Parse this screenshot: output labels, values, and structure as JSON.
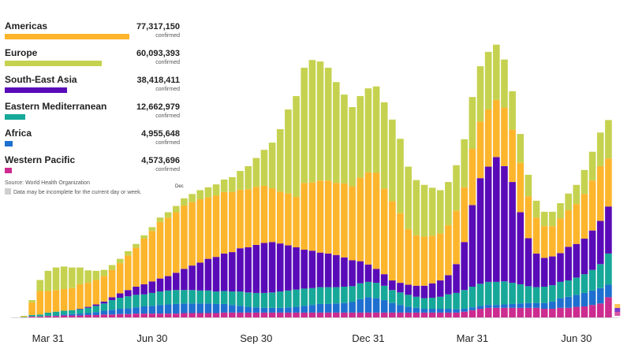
{
  "chart_data": {
    "type": "bar",
    "stacked": true,
    "title": "",
    "xlabel": "",
    "ylabel": "",
    "x_ticks": [
      "Mar 31",
      "Jun 30",
      "Sep 30",
      "Dec 31",
      "Mar 31",
      "Jun 30"
    ],
    "tick_positions": [
      4,
      17,
      30,
      44,
      57,
      70
    ],
    "ylim": [
      0,
      62
    ],
    "grid": false,
    "legend_position": "top-left",
    "series": [
      {
        "name": "Western Pacific",
        "color": "#cc2b8f",
        "values": [
          0,
          0,
          0.2,
          0.2,
          0.3,
          0.3,
          0.4,
          0.4,
          0.4,
          0.5,
          0.5,
          0.6,
          0.6,
          0.7,
          0.7,
          0.8,
          0.8,
          0.8,
          0.8,
          0.8,
          0.8,
          0.9,
          0.9,
          0.9,
          0.9,
          0.9,
          1,
          1,
          1,
          1,
          1,
          1,
          1,
          1,
          1,
          1,
          1,
          1,
          1,
          1,
          1,
          1,
          1,
          1,
          1,
          1,
          1,
          1,
          1,
          1,
          1,
          1,
          1,
          1,
          1,
          1,
          1.2,
          1.5,
          1.8,
          2,
          2,
          2,
          2,
          2,
          2,
          2,
          1.8,
          1.8,
          2,
          2,
          2.2,
          2.3,
          2.6,
          2.9,
          4.2
        ]
      },
      {
        "name": "Africa",
        "color": "#1e6fd0",
        "values": [
          0,
          0,
          0,
          0,
          0,
          0.1,
          0.2,
          0.3,
          0.4,
          0.4,
          0.6,
          0.8,
          1,
          1.1,
          1.2,
          1.3,
          1.5,
          1.6,
          1.8,
          1.9,
          2,
          2,
          2,
          2,
          2,
          1.9,
          1.8,
          1.6,
          1.4,
          1.2,
          1.1,
          1,
          1,
          1,
          1.1,
          1.2,
          1.4,
          1.6,
          1.8,
          1.8,
          1.9,
          2,
          2.2,
          2.8,
          3.2,
          3,
          2.6,
          2,
          1.6,
          1.2,
          1,
          0.8,
          0.8,
          0.8,
          0.8,
          0.7,
          0.6,
          0.6,
          0.6,
          0.6,
          0.6,
          0.7,
          0.8,
          0.9,
          1,
          1,
          1.2,
          1.5,
          2,
          2.3,
          2.5,
          2.8,
          3,
          3.2,
          2.6
        ]
      },
      {
        "name": "Eastern Mediterranean",
        "color": "#16a898",
        "values": [
          0,
          0.1,
          0.3,
          0.4,
          0.7,
          0.8,
          0.8,
          0.8,
          0.9,
          1.1,
          1.3,
          1.5,
          2,
          2.3,
          2.5,
          2.6,
          2.5,
          2.7,
          2.8,
          2.9,
          2.9,
          2.8,
          2.8,
          2.7,
          2.7,
          2.6,
          2.7,
          2.8,
          3,
          3,
          3,
          3.1,
          3.2,
          3.4,
          3.5,
          3.6,
          3.6,
          3.5,
          3.5,
          3.5,
          3.4,
          3.4,
          3.3,
          3.3,
          3.2,
          3.2,
          3,
          2.7,
          2.6,
          2.5,
          2.3,
          2.2,
          2.3,
          2.5,
          3,
          3.4,
          3.9,
          4.3,
          4.6,
          4.8,
          4.8,
          4.8,
          4.4,
          4,
          3.5,
          3.3,
          3.4,
          3.4,
          3.4,
          3.4,
          3.6,
          3.9,
          4.3,
          5,
          6.5
        ]
      },
      {
        "name": "South-East Asia",
        "color": "#5a0bb8",
        "values": [
          0,
          0,
          0,
          0,
          0,
          0,
          0,
          0,
          0.1,
          0.2,
          0.3,
          0.4,
          0.6,
          0.9,
          1.3,
          1.7,
          2.1,
          2.4,
          2.7,
          3,
          3.6,
          4.4,
          5.1,
          5.8,
          6.6,
          7.2,
          7.8,
          8.2,
          9,
          9.4,
          10,
          10.4,
          10.5,
          10,
          9.4,
          8.8,
          8.1,
          7.8,
          7.2,
          7,
          6.7,
          6.1,
          5.4,
          4.6,
          3.6,
          2.9,
          2.4,
          2,
          2,
          2.1,
          2.3,
          2.6,
          3,
          3.4,
          4,
          6,
          10,
          17,
          22,
          24,
          26,
          24,
          21,
          15,
          10,
          7,
          6,
          6,
          6,
          7,
          7,
          7.4,
          8.2,
          9,
          9.8
        ]
      },
      {
        "name": "Americas",
        "color": "#fdb52c",
        "values": [
          0,
          0.2,
          2.6,
          4.9,
          4.5,
          4.5,
          4.5,
          4.6,
          5.1,
          5,
          5.1,
          5.3,
          5.7,
          6.3,
          7.2,
          8.1,
          9.5,
          10.5,
          11.8,
          12.2,
          12.6,
          13.2,
          13.2,
          13.2,
          12.8,
          12.8,
          12.8,
          12.5,
          12.2,
          12.1,
          12.1,
          11.9,
          11.2,
          10.8,
          10.8,
          10.5,
          13.9,
          14.2,
          15,
          15.2,
          15,
          15.4,
          15.4,
          17.4,
          19.2,
          20,
          17.8,
          16.5,
          14.5,
          11.6,
          10.5,
          10.2,
          9.9,
          9.8,
          10.4,
          11.1,
          11.4,
          11.7,
          11.8,
          11.9,
          11.9,
          12.2,
          10.9,
          10.3,
          8.7,
          7.5,
          6.6,
          6.3,
          7.2,
          7.6,
          8.3,
          9.3,
          10.4,
          11.4,
          10
        ]
      },
      {
        "name": "Europe",
        "color": "#c5d24f",
        "values": [
          0,
          0,
          0.5,
          2.3,
          4.2,
          4.7,
          4.7,
          4.3,
          3.5,
          2.6,
          1.9,
          1.3,
          1,
          0.9,
          0.9,
          0.8,
          0.7,
          0.8,
          0.9,
          1.1,
          1.3,
          1.5,
          1.7,
          1.9,
          2.1,
          2.3,
          2.6,
          3.1,
          3.9,
          4.8,
          6,
          7.5,
          9.5,
          13,
          17.5,
          21,
          24,
          25.5,
          24.8,
          23.5,
          21,
          18.5,
          16.5,
          17,
          17.5,
          18,
          18,
          17,
          15.5,
          13,
          11.5,
          10.8,
          10,
          9,
          9,
          9.5,
          10,
          10.8,
          11.5,
          12,
          11.5,
          10,
          8,
          6,
          4.5,
          3.5,
          3,
          3,
          3.2,
          3.5,
          4,
          5,
          6,
          7,
          8
        ]
      }
    ]
  },
  "legend": [
    {
      "name": "Americas",
      "value": "77,317,150",
      "sub": "confirmed",
      "color": "#fdb52c",
      "fraction": 1.0
    },
    {
      "name": "Europe",
      "value": "60,093,393",
      "sub": "confirmed",
      "color": "#c5d24f",
      "fraction": 0.78
    },
    {
      "name": "South-East Asia",
      "value": "38,418,411",
      "sub": "confirmed",
      "color": "#5a0bb8",
      "fraction": 0.5
    },
    {
      "name": "Eastern Mediterranean",
      "value": "12,662,979",
      "sub": "confirmed",
      "color": "#16a898",
      "fraction": 0.164
    },
    {
      "name": "Africa",
      "value": "4,955,648",
      "sub": "confirmed",
      "color": "#1e6fd0",
      "fraction": 0.064
    },
    {
      "name": "Western Pacific",
      "value": "4,573,696",
      "sub": "confirmed",
      "color": "#cc2b8f",
      "fraction": 0.059
    }
  ],
  "source": "Source: World Health Organization",
  "note": "Data may be incomplete for the current day or week.",
  "hover_label": "Dec"
}
